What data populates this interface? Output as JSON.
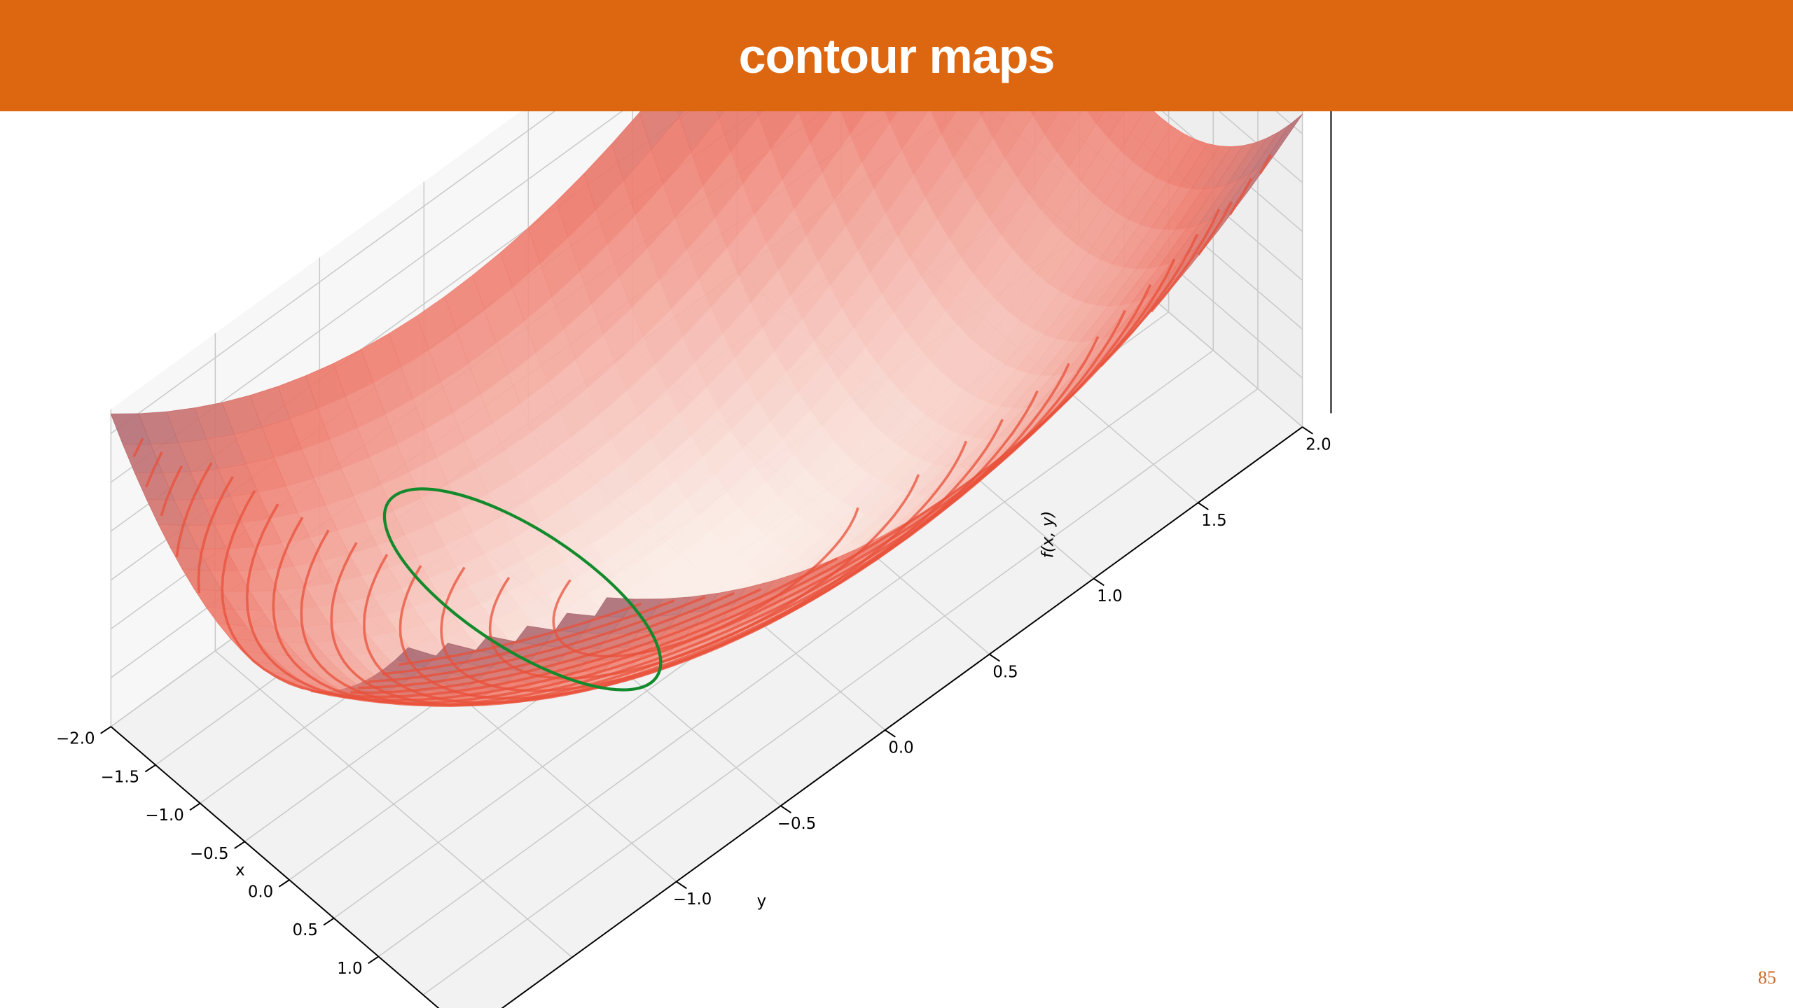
{
  "slide": {
    "title": "contour maps",
    "page_number": "85"
  },
  "chart_data": {
    "type": "surface3d",
    "function": "f(x, y) = (x - y)^2 + ((x + y) / 2)^2 (approximate shape)",
    "xlabel": "x",
    "ylabel": "y",
    "zlabel": "f(x, y)",
    "xlim": [
      -2.0,
      2.0
    ],
    "ylim": [
      -2.0,
      2.0
    ],
    "x_ticks": [
      "−2.0",
      "−1.5",
      "−1.0",
      "−0.5",
      "0.0",
      "0.5",
      "1.0"
    ],
    "y_ticks": [
      "−1.0",
      "−0.5",
      "0.0",
      "0.5",
      "1.0",
      "1.5",
      "2.0"
    ],
    "surface_colormap": "Reds",
    "contour_levels": 16,
    "contour_color": "#e8503a",
    "highlight_curve": {
      "type": "ellipse",
      "color": "#138a2c"
    },
    "grid": true,
    "pane_color": "#f2f2f2"
  }
}
